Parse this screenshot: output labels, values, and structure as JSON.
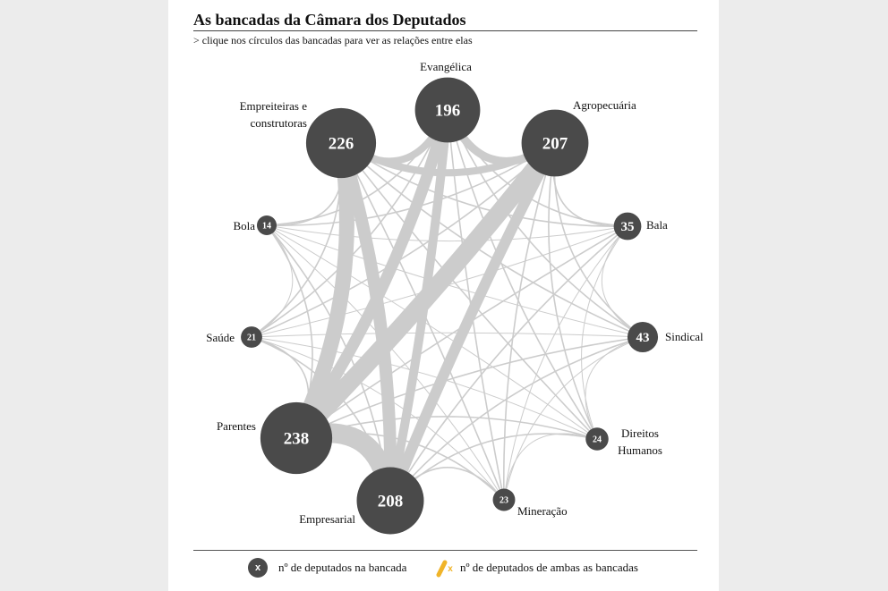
{
  "header": {
    "title": "As bancadas da Câmara dos Deputados",
    "subtitle": "> clique nos círculos das bancadas para ver as relações entre elas"
  },
  "colors": {
    "node": "#4a4a4a",
    "edge": "#cccccc",
    "highlight": "#f0b429",
    "panel": "#ffffff",
    "background": "#ececec"
  },
  "nodes": [
    {
      "id": "evangelica",
      "label": "Evangélica",
      "count": 196
    },
    {
      "id": "agropecuaria",
      "label": "Agropecuária",
      "count": 207
    },
    {
      "id": "bala",
      "label": "Bala",
      "count": 35
    },
    {
      "id": "sindical",
      "label": "Sindical",
      "count": 43
    },
    {
      "id": "direitos-humanos",
      "label": "Direitos Humanos",
      "count": 24
    },
    {
      "id": "mineracao",
      "label": "Mineração",
      "count": 23
    },
    {
      "id": "empresarial",
      "label": "Empresarial",
      "count": 208
    },
    {
      "id": "parentes",
      "label": "Parentes",
      "count": 238
    },
    {
      "id": "saude",
      "label": "Saúde",
      "count": 21
    },
    {
      "id": "bola",
      "label": "Bola",
      "count": 14
    },
    {
      "id": "empreiteiras",
      "label": "Empreiteiras e construtoras",
      "count": 226
    }
  ],
  "legend": {
    "node_symbol": "x",
    "node_label": "nº de deputados na bancada",
    "link_symbol": "x",
    "link_label": "nº de deputados de ambas as bancadas"
  }
}
